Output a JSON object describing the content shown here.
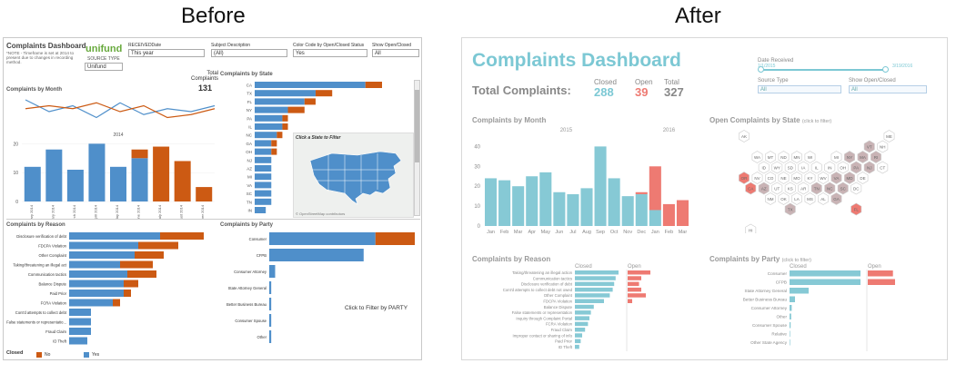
{
  "labels": {
    "before": "Before",
    "after": "After"
  },
  "before": {
    "title": "Complaints Dashboard",
    "note": "*NOTE - Timeframe is set at 2014 to present due to changes in recording method.",
    "logo": "unifund",
    "source_type_label": "SOURCE TYPE",
    "source_type_value": "Unifund",
    "filters": [
      {
        "label": "RECEIVEDDate",
        "value": "This year"
      },
      {
        "label": "Subject Description",
        "value": "(All)"
      },
      {
        "label": "Color Code by Open/Closed Status",
        "value": "Yes"
      },
      {
        "label": "Show Open/Closed",
        "value": "All"
      }
    ],
    "total_label": "Total Complaints",
    "total_value": "131",
    "month_title": "Complaints by Month",
    "month_year": "2014",
    "month_ticks": [
      "20",
      "10",
      "0"
    ],
    "state_title": "Complaints by State",
    "map_label": "Click a State to Filter",
    "map_credit": "© OpenStreetMap contributors",
    "reason_title": "Complaints by Reason",
    "party_title": "Complaints by Party",
    "party_filter": "Click to Filter by PARTY",
    "legend_title": "Closed",
    "legend_no": "No",
    "legend_yes": "Yes",
    "colors": {
      "closed": "#4f8fca",
      "open": "#cc5a13"
    }
  },
  "after": {
    "title": "Complaints Dashboard",
    "total_label": "Total Complaints:",
    "closed_label": "Closed",
    "closed_value": "288",
    "open_label": "Open",
    "open_value": "39",
    "total_head": "Total",
    "total_value": "327",
    "date_label": "Date Received",
    "date_start": "1/1/2015",
    "date_end": "3/19/2016",
    "source_label": "Source Type",
    "source_value": "All",
    "show_label": "Show Open/Closed",
    "show_value": "All",
    "month_title": "Complaints by Month",
    "year_2015": "2015",
    "year_2016": "2016",
    "month_ticks": [
      "40",
      "30",
      "20",
      "10",
      "0"
    ],
    "state_title": "Open Complaints by State",
    "state_hint": "(click to filter)",
    "reason_title": "Complaints by Reason",
    "party_title": "Complaints by Party",
    "party_hint": "(click to filter)",
    "closed_col": "Closed",
    "open_col": "Open",
    "colors": {
      "closed": "#86c9d5",
      "open": "#ee7a72",
      "title": "#7cc8d4"
    }
  },
  "chart_data": [
    {
      "type": "bar",
      "title": "Complaints by Month",
      "categories": [
        "January 2014",
        "February 2014",
        "March 2014",
        "April 2014",
        "May 2014",
        "June 2014",
        "July 2014",
        "August 2014",
        "September 2014"
      ],
      "series": [
        {
          "name": "Yes",
          "values": [
            12,
            18,
            11,
            20,
            12,
            15,
            0,
            0,
            0
          ]
        },
        {
          "name": "No",
          "values": [
            0,
            0,
            0,
            0,
            0,
            3,
            19,
            14,
            5
          ]
        }
      ],
      "ylim": [
        0,
        22
      ]
    },
    {
      "type": "bar",
      "title": "Complaints by State",
      "categories": [
        "CA",
        "TX",
        "FL",
        "NY",
        "PA",
        "IL",
        "NC",
        "GA",
        "OH",
        "NJ",
        "AZ",
        "MI",
        "VA",
        "SC",
        "TN",
        "IN"
      ],
      "series": [
        {
          "name": "Yes",
          "values": [
            20,
            11,
            9,
            6,
            5,
            5,
            4,
            3,
            3,
            3,
            3,
            3,
            3,
            3,
            3,
            2
          ]
        },
        {
          "name": "No",
          "values": [
            3,
            3,
            2,
            3,
            1,
            1,
            1,
            1,
            1,
            0,
            0,
            0,
            0,
            0,
            0,
            0
          ]
        }
      ]
    },
    {
      "type": "bar",
      "title": "Complaints by Reason",
      "categories": [
        "Disclosure verification of debt",
        "FDCPA Violation",
        "Other Complaint",
        "Taking/threatening an illegal act",
        "Communication tactics",
        "Balance Dispute",
        "Paid Prior",
        "FCRA Violation",
        "Cont'd attempts to collect debt",
        "False statements or representatio...",
        "Fraud Claim",
        "ID Theft"
      ],
      "series": [
        {
          "name": "Yes",
          "values": [
            25,
            19,
            18,
            14,
            16,
            15,
            15,
            12,
            6,
            6,
            6,
            5
          ]
        },
        {
          "name": "No",
          "values": [
            12,
            11,
            8,
            9,
            8,
            4,
            2,
            2,
            0,
            0,
            0,
            0
          ]
        }
      ]
    },
    {
      "type": "bar",
      "title": "Complaints by Party",
      "categories": [
        "Consumer",
        "CFPB",
        "Consumer Attorney",
        "State Attorney General",
        "Better Business Bureau",
        "Consumer Spouse",
        "Other"
      ],
      "series": [
        {
          "name": "Yes",
          "values": [
            54,
            48,
            3,
            1,
            1,
            1,
            1
          ]
        },
        {
          "name": "No",
          "values": [
            20,
            0,
            0,
            0,
            0,
            0,
            0
          ]
        }
      ]
    },
    {
      "type": "bar",
      "title": "Complaints by Month",
      "categories": [
        "Jan",
        "Feb",
        "Mar",
        "Apr",
        "May",
        "Jun",
        "Jul",
        "Aug",
        "Sep",
        "Oct",
        "Nov",
        "Dec",
        "Jan",
        "Feb",
        "Mar"
      ],
      "series": [
        {
          "name": "Closed",
          "values": [
            24,
            23,
            20,
            25,
            27,
            17,
            16,
            19,
            40,
            24,
            15,
            16,
            8,
            0,
            0
          ]
        },
        {
          "name": "Open",
          "values": [
            0,
            0,
            0,
            0,
            0,
            0,
            0,
            0,
            0,
            0,
            0,
            1,
            22,
            11,
            13
          ]
        }
      ],
      "ylim": [
        0,
        42
      ]
    },
    {
      "type": "bar",
      "title": "Complaints by Reason",
      "categories": [
        "Taking/threatening an illegal action",
        "Communication tactics",
        "Disclosure verification of debt",
        "Cont'd attempts to collect debt not owed",
        "Other Complaint",
        "FDCPA Violation",
        "Balance Dispute",
        "False statements or representation",
        "Inquiry through Complaint Portal",
        "FCRA Violation",
        "Fraud Claim",
        "Improper contact or sharing of info",
        "Paid Prior",
        "ID Theft"
      ],
      "series": [
        {
          "name": "Closed",
          "values": [
            60,
            56,
            54,
            52,
            48,
            40,
            26,
            22,
            20,
            18,
            14,
            10,
            8,
            6
          ]
        },
        {
          "name": "Open",
          "values": [
            10,
            6,
            5,
            6,
            8,
            2,
            0,
            0,
            0,
            0,
            0,
            0,
            0,
            0
          ]
        }
      ]
    },
    {
      "type": "bar",
      "title": "Complaints by Party",
      "categories": [
        "Consumer",
        "CFPB",
        "State Attorney General",
        "Better Business Bureau",
        "Consumer Attorney",
        "Other",
        "Consumer Spouse",
        "Relative",
        "Other State Agency"
      ],
      "series": [
        {
          "name": "Closed",
          "values": [
            130,
            130,
            35,
            10,
            4,
            3,
            2,
            1,
            1
          ]
        },
        {
          "name": "Open",
          "values": [
            12,
            13,
            0,
            0,
            0,
            0,
            0,
            0,
            0
          ]
        }
      ]
    }
  ]
}
